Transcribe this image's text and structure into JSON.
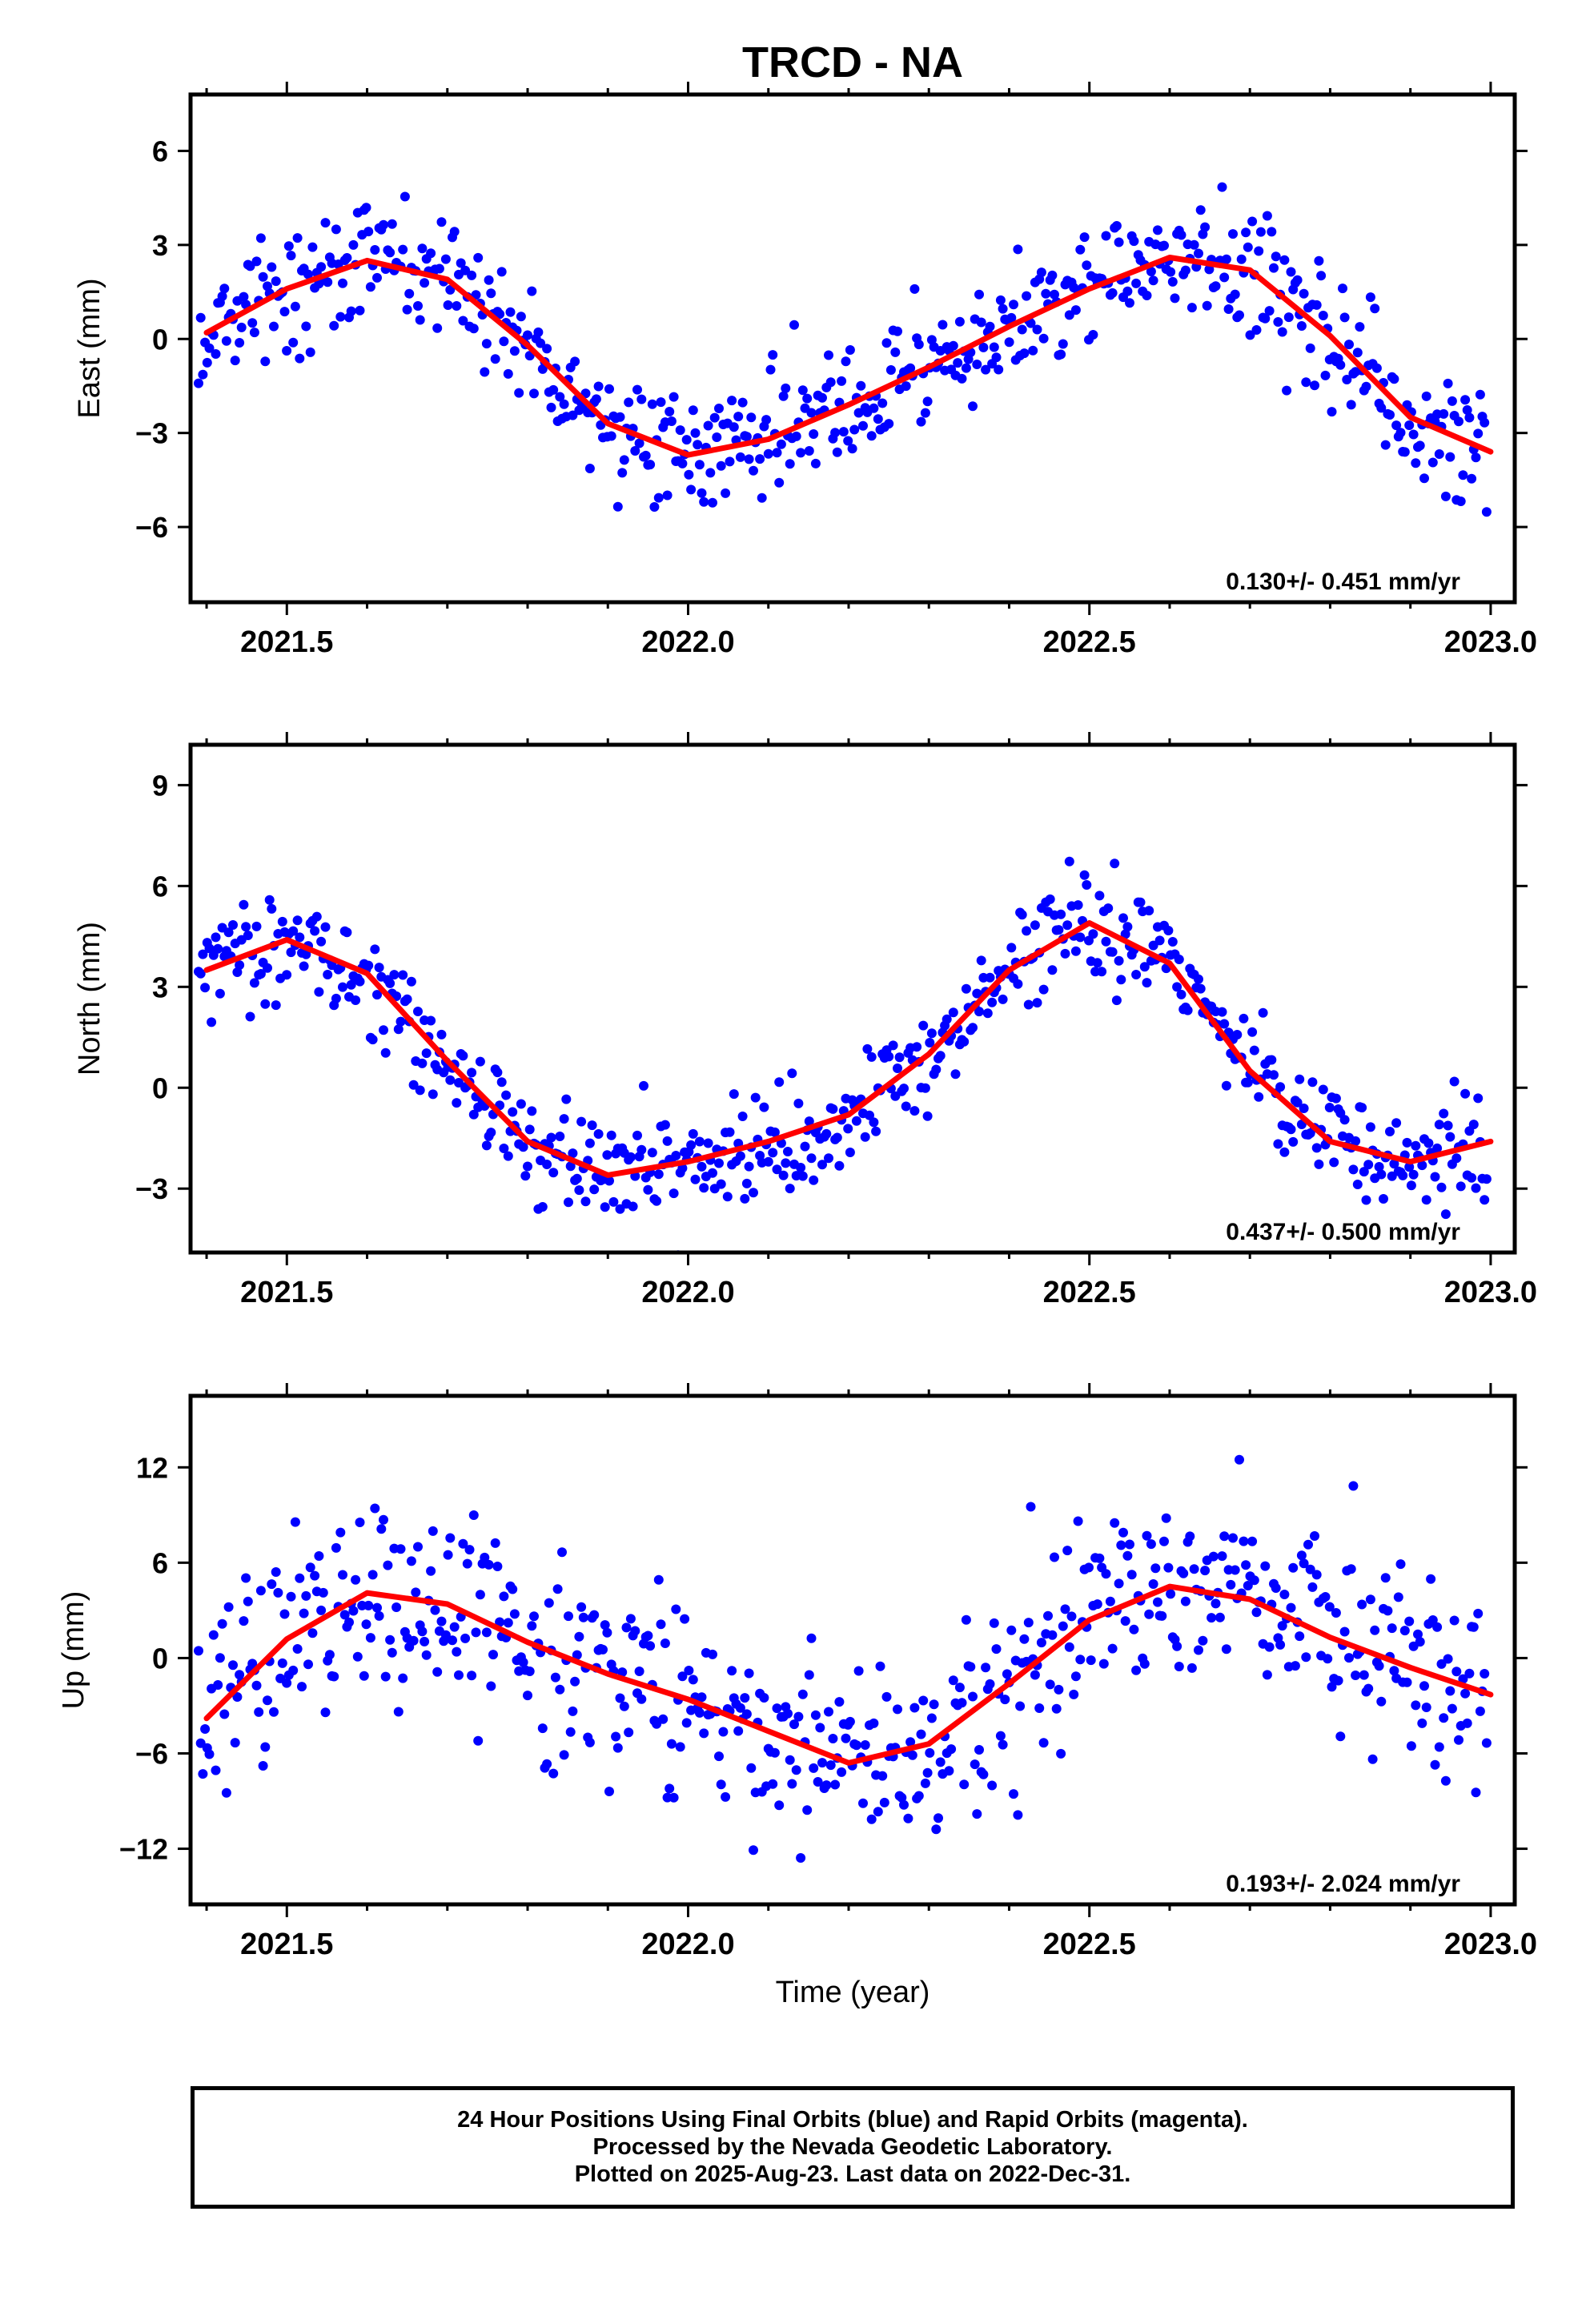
{
  "title": "TRCD - NA",
  "xlabel": "Time (year)",
  "caption": [
    "24 Hour Positions Using Final Orbits (blue) and Rapid Orbits (magenta).",
    "Processed by the Nevada Geodetic Laboratory.",
    "Plotted on 2025-Aug-23. Last data on 2022-Dec-31."
  ],
  "colors": {
    "points": "#0000ff",
    "model": "#ff0000",
    "axes": "#000000"
  },
  "chart_data": [
    {
      "type": "scatter",
      "ylabel": "East (mm)",
      "rate_label": "0.130+/- 0.451 mm/yr",
      "xlim": [
        2021.38,
        2023.03
      ],
      "ylim": [
        -8.4,
        7.8
      ],
      "xticks": [
        2021.5,
        2022.0,
        2022.5,
        2023.0
      ],
      "xtick_labels": [
        "2021.5",
        "2022.0",
        "2022.5",
        "2023.0"
      ],
      "yticks": [
        -6,
        -3,
        0,
        3,
        6
      ],
      "ytick_labels": [
        "−6",
        "−3",
        "0",
        "3",
        "6"
      ],
      "model": {
        "x": [
          2021.4,
          2021.5,
          2021.6,
          2021.7,
          2021.8,
          2021.9,
          2022.0,
          2022.1,
          2022.2,
          2022.3,
          2022.4,
          2022.5,
          2022.6,
          2022.7,
          2022.8,
          2022.9,
          2023.0
        ],
        "y": [
          0.2,
          1.6,
          2.5,
          1.9,
          -0.2,
          -2.7,
          -3.7,
          -3.2,
          -2.1,
          -0.9,
          0.4,
          1.6,
          2.6,
          2.2,
          0.1,
          -2.5,
          -3.6
        ]
      },
      "scatter_level": 1.6
    },
    {
      "type": "scatter",
      "ylabel": "North (mm)",
      "rate_label": "0.437+/- 0.500 mm/yr",
      "xlim": [
        2021.38,
        2023.03
      ],
      "ylim": [
        -4.9,
        10.2
      ],
      "xticks": [
        2021.5,
        2022.0,
        2022.5,
        2023.0
      ],
      "xtick_labels": [
        "2021.5",
        "2022.0",
        "2022.5",
        "2023.0"
      ],
      "yticks": [
        -3,
        0,
        3,
        6,
        9
      ],
      "ytick_labels": [
        "−3",
        "0",
        "3",
        "6",
        "9"
      ],
      "model": {
        "x": [
          2021.4,
          2021.5,
          2021.6,
          2021.7,
          2021.8,
          2021.9,
          2022.0,
          2022.1,
          2022.2,
          2022.3,
          2022.4,
          2022.5,
          2022.6,
          2022.7,
          2022.8,
          2022.9,
          2023.0
        ],
        "y": [
          3.5,
          4.4,
          3.4,
          0.8,
          -1.6,
          -2.6,
          -2.2,
          -1.6,
          -0.8,
          1.0,
          3.5,
          4.9,
          3.7,
          0.5,
          -1.6,
          -2.2,
          -1.6
        ]
      },
      "scatter_level": 1.3
    },
    {
      "type": "scatter",
      "ylabel": "Up (mm)",
      "rate_label": "0.193+/- 2.024 mm/yr",
      "xlim": [
        2021.38,
        2023.03
      ],
      "ylim": [
        -15.5,
        16.5
      ],
      "xticks": [
        2021.5,
        2022.0,
        2022.5,
        2023.0
      ],
      "xtick_labels": [
        "2021.5",
        "2022.0",
        "2022.5",
        "2023.0"
      ],
      "yticks": [
        -12,
        -6,
        0,
        6,
        12
      ],
      "ytick_labels": [
        "−12",
        "−6",
        "0",
        "6",
        "12"
      ],
      "model": {
        "x": [
          2021.4,
          2021.5,
          2021.6,
          2021.7,
          2021.8,
          2021.9,
          2022.0,
          2022.1,
          2022.2,
          2022.3,
          2022.4,
          2022.5,
          2022.6,
          2022.7,
          2022.8,
          2022.9,
          2023.0
        ],
        "y": [
          -3.8,
          1.2,
          4.1,
          3.4,
          1.0,
          -1.0,
          -2.6,
          -4.6,
          -6.6,
          -5.4,
          -1.6,
          2.4,
          4.5,
          3.7,
          1.3,
          -0.6,
          -2.3
        ]
      },
      "scatter_level": 4.8
    }
  ]
}
